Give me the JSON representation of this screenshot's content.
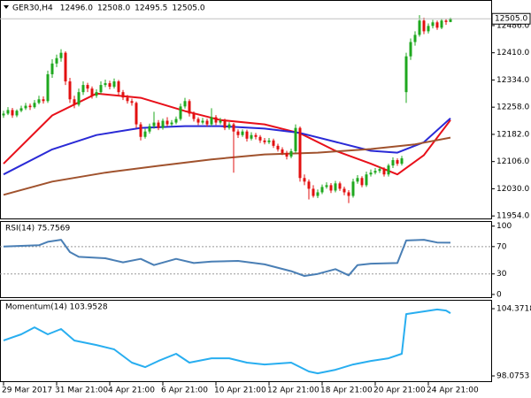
{
  "chart_data": [
    {
      "type": "candlestick",
      "title": "GER30,H4",
      "ohlc_labels": [
        "12496.0",
        "12508.0",
        "12495.5",
        "12505.0"
      ],
      "last_price_label": "12505.0",
      "colors": {
        "up": "#1fa81f",
        "down": "#e21010",
        "price_line": "#c0c0c0"
      },
      "ylim": [
        11947,
        12555
      ],
      "yticks": [
        {
          "value": 12486,
          "label": "12486.0"
        },
        {
          "value": 12410,
          "label": "12410.0"
        },
        {
          "value": 12334,
          "label": "12334.0"
        },
        {
          "value": 12258,
          "label": "12258.0"
        },
        {
          "value": 12182,
          "label": "12182.0"
        },
        {
          "value": 12106,
          "label": "12106.0"
        },
        {
          "value": 12030,
          "label": "12030.0"
        },
        {
          "value": 11954,
          "label": "11954.0"
        }
      ],
      "candles": [
        [
          12235,
          12248,
          12228,
          12240
        ],
        [
          12240,
          12258,
          12236,
          12250
        ],
        [
          12250,
          12256,
          12228,
          12235
        ],
        [
          12235,
          12252,
          12230,
          12248
        ],
        [
          12248,
          12262,
          12244,
          12255
        ],
        [
          12255,
          12270,
          12250,
          12262
        ],
        [
          12262,
          12268,
          12250,
          12258
        ],
        [
          12258,
          12278,
          12254,
          12270
        ],
        [
          12270,
          12290,
          12266,
          12280
        ],
        [
          12280,
          12288,
          12268,
          12275
        ],
        [
          12275,
          12360,
          12270,
          12350
        ],
        [
          12350,
          12392,
          12340,
          12380
        ],
        [
          12380,
          12405,
          12370,
          12395
        ],
        [
          12395,
          12420,
          12385,
          12410
        ],
        [
          12410,
          12414,
          12320,
          12330
        ],
        [
          12330,
          12340,
          12270,
          12280
        ],
        [
          12280,
          12290,
          12255,
          12265
        ],
        [
          12265,
          12310,
          12260,
          12300
        ],
        [
          12300,
          12330,
          12292,
          12320
        ],
        [
          12320,
          12326,
          12300,
          12310
        ],
        [
          12310,
          12316,
          12282,
          12290
        ],
        [
          12290,
          12308,
          12284,
          12300
        ],
        [
          12300,
          12330,
          12295,
          12320
        ],
        [
          12320,
          12335,
          12314,
          12325
        ],
        [
          12325,
          12332,
          12308,
          12315
        ],
        [
          12315,
          12338,
          12310,
          12330
        ],
        [
          12330,
          12334,
          12290,
          12300
        ],
        [
          12300,
          12306,
          12278,
          12285
        ],
        [
          12285,
          12292,
          12268,
          12275
        ],
        [
          12275,
          12282,
          12262,
          12270
        ],
        [
          12270,
          12274,
          12200,
          12210
        ],
        [
          12210,
          12216,
          12165,
          12175
        ],
        [
          12175,
          12198,
          12170,
          12190
        ],
        [
          12190,
          12212,
          12184,
          12205
        ],
        [
          12205,
          12245,
          12198,
          12215
        ],
        [
          12215,
          12222,
          12194,
          12200
        ],
        [
          12200,
          12226,
          12195,
          12220
        ],
        [
          12220,
          12230,
          12204,
          12210
        ],
        [
          12210,
          12222,
          12205,
          12215
        ],
        [
          12215,
          12232,
          12210,
          12225
        ],
        [
          12225,
          12268,
          12220,
          12260
        ],
        [
          12260,
          12284,
          12254,
          12275
        ],
        [
          12275,
          12280,
          12232,
          12240
        ],
        [
          12240,
          12246,
          12218,
          12225
        ],
        [
          12225,
          12230,
          12208,
          12215
        ],
        [
          12215,
          12228,
          12210,
          12220
        ],
        [
          12220,
          12226,
          12204,
          12210
        ],
        [
          12210,
          12255,
          12205,
          12230
        ],
        [
          12230,
          12236,
          12208,
          12215
        ],
        [
          12215,
          12228,
          12210,
          12220
        ],
        [
          12220,
          12226,
          12194,
          12200
        ],
        [
          12200,
          12216,
          12195,
          12210
        ],
        [
          12210,
          12214,
          12075,
          12190
        ],
        [
          12190,
          12196,
          12172,
          12180
        ],
        [
          12180,
          12196,
          12175,
          12190
        ],
        [
          12190,
          12195,
          12162,
          12170
        ],
        [
          12170,
          12188,
          12165,
          12180
        ],
        [
          12180,
          12186,
          12168,
          12175
        ],
        [
          12175,
          12180,
          12158,
          12165
        ],
        [
          12165,
          12172,
          12154,
          12160
        ],
        [
          12160,
          12172,
          12155,
          12165
        ],
        [
          12165,
          12170,
          12144,
          12150
        ],
        [
          12150,
          12156,
          12134,
          12140
        ],
        [
          12140,
          12146,
          12124,
          12130
        ],
        [
          12130,
          12136,
          12112,
          12120
        ],
        [
          12120,
          12142,
          12115,
          12135
        ],
        [
          12135,
          12210,
          12130,
          12200
        ],
        [
          12200,
          12204,
          12050,
          12060
        ],
        [
          12060,
          12070,
          12040,
          12050
        ],
        [
          12050,
          12056,
          12000,
          12030
        ],
        [
          12030,
          12040,
          12005,
          12010
        ],
        [
          12010,
          12028,
          12004,
          12020
        ],
        [
          12020,
          12042,
          12015,
          12035
        ],
        [
          12035,
          12048,
          12030,
          12040
        ],
        [
          12040,
          12046,
          12018,
          12025
        ],
        [
          12025,
          12052,
          12020,
          12045
        ],
        [
          12045,
          12050,
          12024,
          12030
        ],
        [
          12030,
          12036,
          12012,
          12020
        ],
        [
          12020,
          12026,
          11990,
          12010
        ],
        [
          12010,
          12058,
          12005,
          12050
        ],
        [
          12050,
          12068,
          12044,
          12060
        ],
        [
          12060,
          12065,
          12034,
          12040
        ],
        [
          12040,
          12078,
          12035,
          12070
        ],
        [
          12070,
          12084,
          12064,
          12075
        ],
        [
          12075,
          12088,
          12070,
          12080
        ],
        [
          12080,
          12092,
          12074,
          12085
        ],
        [
          12085,
          12090,
          12064,
          12070
        ],
        [
          12070,
          12100,
          12064,
          12095
        ],
        [
          12095,
          12118,
          12088,
          12110
        ],
        [
          12110,
          12115,
          12094,
          12100
        ],
        [
          12100,
          12122,
          12095,
          12115
        ],
        [
          12300,
          12410,
          12270,
          12400
        ],
        [
          12400,
          12450,
          12390,
          12440
        ],
        [
          12440,
          12470,
          12430,
          12460
        ],
        [
          12460,
          12515,
          12455,
          12500
        ],
        [
          12500,
          12508,
          12462,
          12470
        ],
        [
          12470,
          12492,
          12464,
          12485
        ],
        [
          12485,
          12502,
          12478,
          12495
        ],
        [
          12495,
          12500,
          12474,
          12480
        ],
        [
          12480,
          12506,
          12476,
          12500
        ],
        [
          12500,
          12504,
          12488,
          12496
        ],
        [
          12496,
          12508,
          12495.5,
          12505
        ]
      ],
      "moving_averages": [
        {
          "color": "#e8101a",
          "x": [
            0,
            11,
            21,
            31,
            41,
            49,
            59,
            67,
            75,
            83,
            89,
            95,
            101
          ],
          "values": [
            12100,
            12235,
            12296,
            12284,
            12247,
            12222,
            12210,
            12185,
            12136,
            12100,
            12070,
            12124,
            12222
          ]
        },
        {
          "color": "#2a2ad6",
          "x": [
            0,
            11,
            21,
            31,
            41,
            49,
            59,
            67,
            75,
            83,
            89,
            95,
            101
          ],
          "values": [
            12070,
            12140,
            12180,
            12200,
            12205,
            12205,
            12198,
            12186,
            12161,
            12136,
            12131,
            12160,
            12227
          ]
        },
        {
          "color": "#a0522d",
          "x": [
            0,
            11,
            23,
            35,
            47,
            59,
            71,
            83,
            93,
            101
          ],
          "values": [
            12013,
            12050,
            12075,
            12094,
            12112,
            12126,
            12131,
            12141,
            12154,
            12173
          ]
        }
      ]
    },
    {
      "type": "line",
      "title": "RSI(14) 75.7569",
      "color": "#4a7fb5",
      "ylim": [
        -4,
        106
      ],
      "yticks": [
        100,
        70,
        30,
        0
      ],
      "levels": [
        70,
        30
      ],
      "x": [
        0,
        8,
        10,
        13,
        15,
        17,
        23,
        27,
        31,
        34,
        39,
        43,
        47,
        53,
        59,
        65,
        68,
        71,
        75,
        78,
        80,
        83,
        89,
        91,
        95,
        98,
        101
      ],
      "values": [
        70,
        72,
        77,
        80,
        62,
        55,
        53,
        47,
        52,
        43,
        52,
        46,
        48,
        49,
        44,
        34,
        27,
        30,
        37,
        28,
        43,
        45,
        46,
        79,
        80,
        76,
        75.7569
      ]
    },
    {
      "type": "line",
      "title": "Momentum(14) 103.9528",
      "color": "#28aef0",
      "ylim": [
        97.58,
        105.12
      ],
      "yticks": [
        104.3718,
        98.0753
      ],
      "x": [
        0,
        4,
        7,
        10,
        13,
        16,
        21,
        25,
        29,
        32,
        35,
        39,
        42,
        47,
        51,
        55,
        59,
        65,
        69,
        71,
        75,
        79,
        83,
        87,
        90,
        91,
        95,
        98,
        100,
        101
      ],
      "values": [
        101.4,
        101.97,
        102.63,
        101.97,
        102.47,
        101.39,
        100.97,
        100.56,
        99.32,
        98.9,
        99.48,
        100.15,
        99.32,
        99.73,
        99.73,
        99.32,
        99.15,
        99.32,
        98.49,
        98.32,
        98.65,
        99.15,
        99.48,
        99.73,
        100.15,
        103.87,
        104.12,
        104.3,
        104.2,
        103.9528
      ],
      "xticks": [
        {
          "value": 0,
          "label": "29 Mar 2017"
        },
        {
          "value": 12,
          "label": "31 Mar 21:00"
        },
        {
          "value": 24,
          "label": "4 Apr 21:00"
        },
        {
          "value": 36,
          "label": "6 Apr 21:00"
        },
        {
          "value": 48,
          "label": "10 Apr 21:00"
        },
        {
          "value": 60,
          "label": "12 Apr 21:00"
        },
        {
          "value": 72,
          "label": "18 Apr 21:00"
        },
        {
          "value": 84,
          "label": "20 Apr 21:00"
        },
        {
          "value": 96,
          "label": "24 Apr 21:00"
        }
      ]
    }
  ]
}
